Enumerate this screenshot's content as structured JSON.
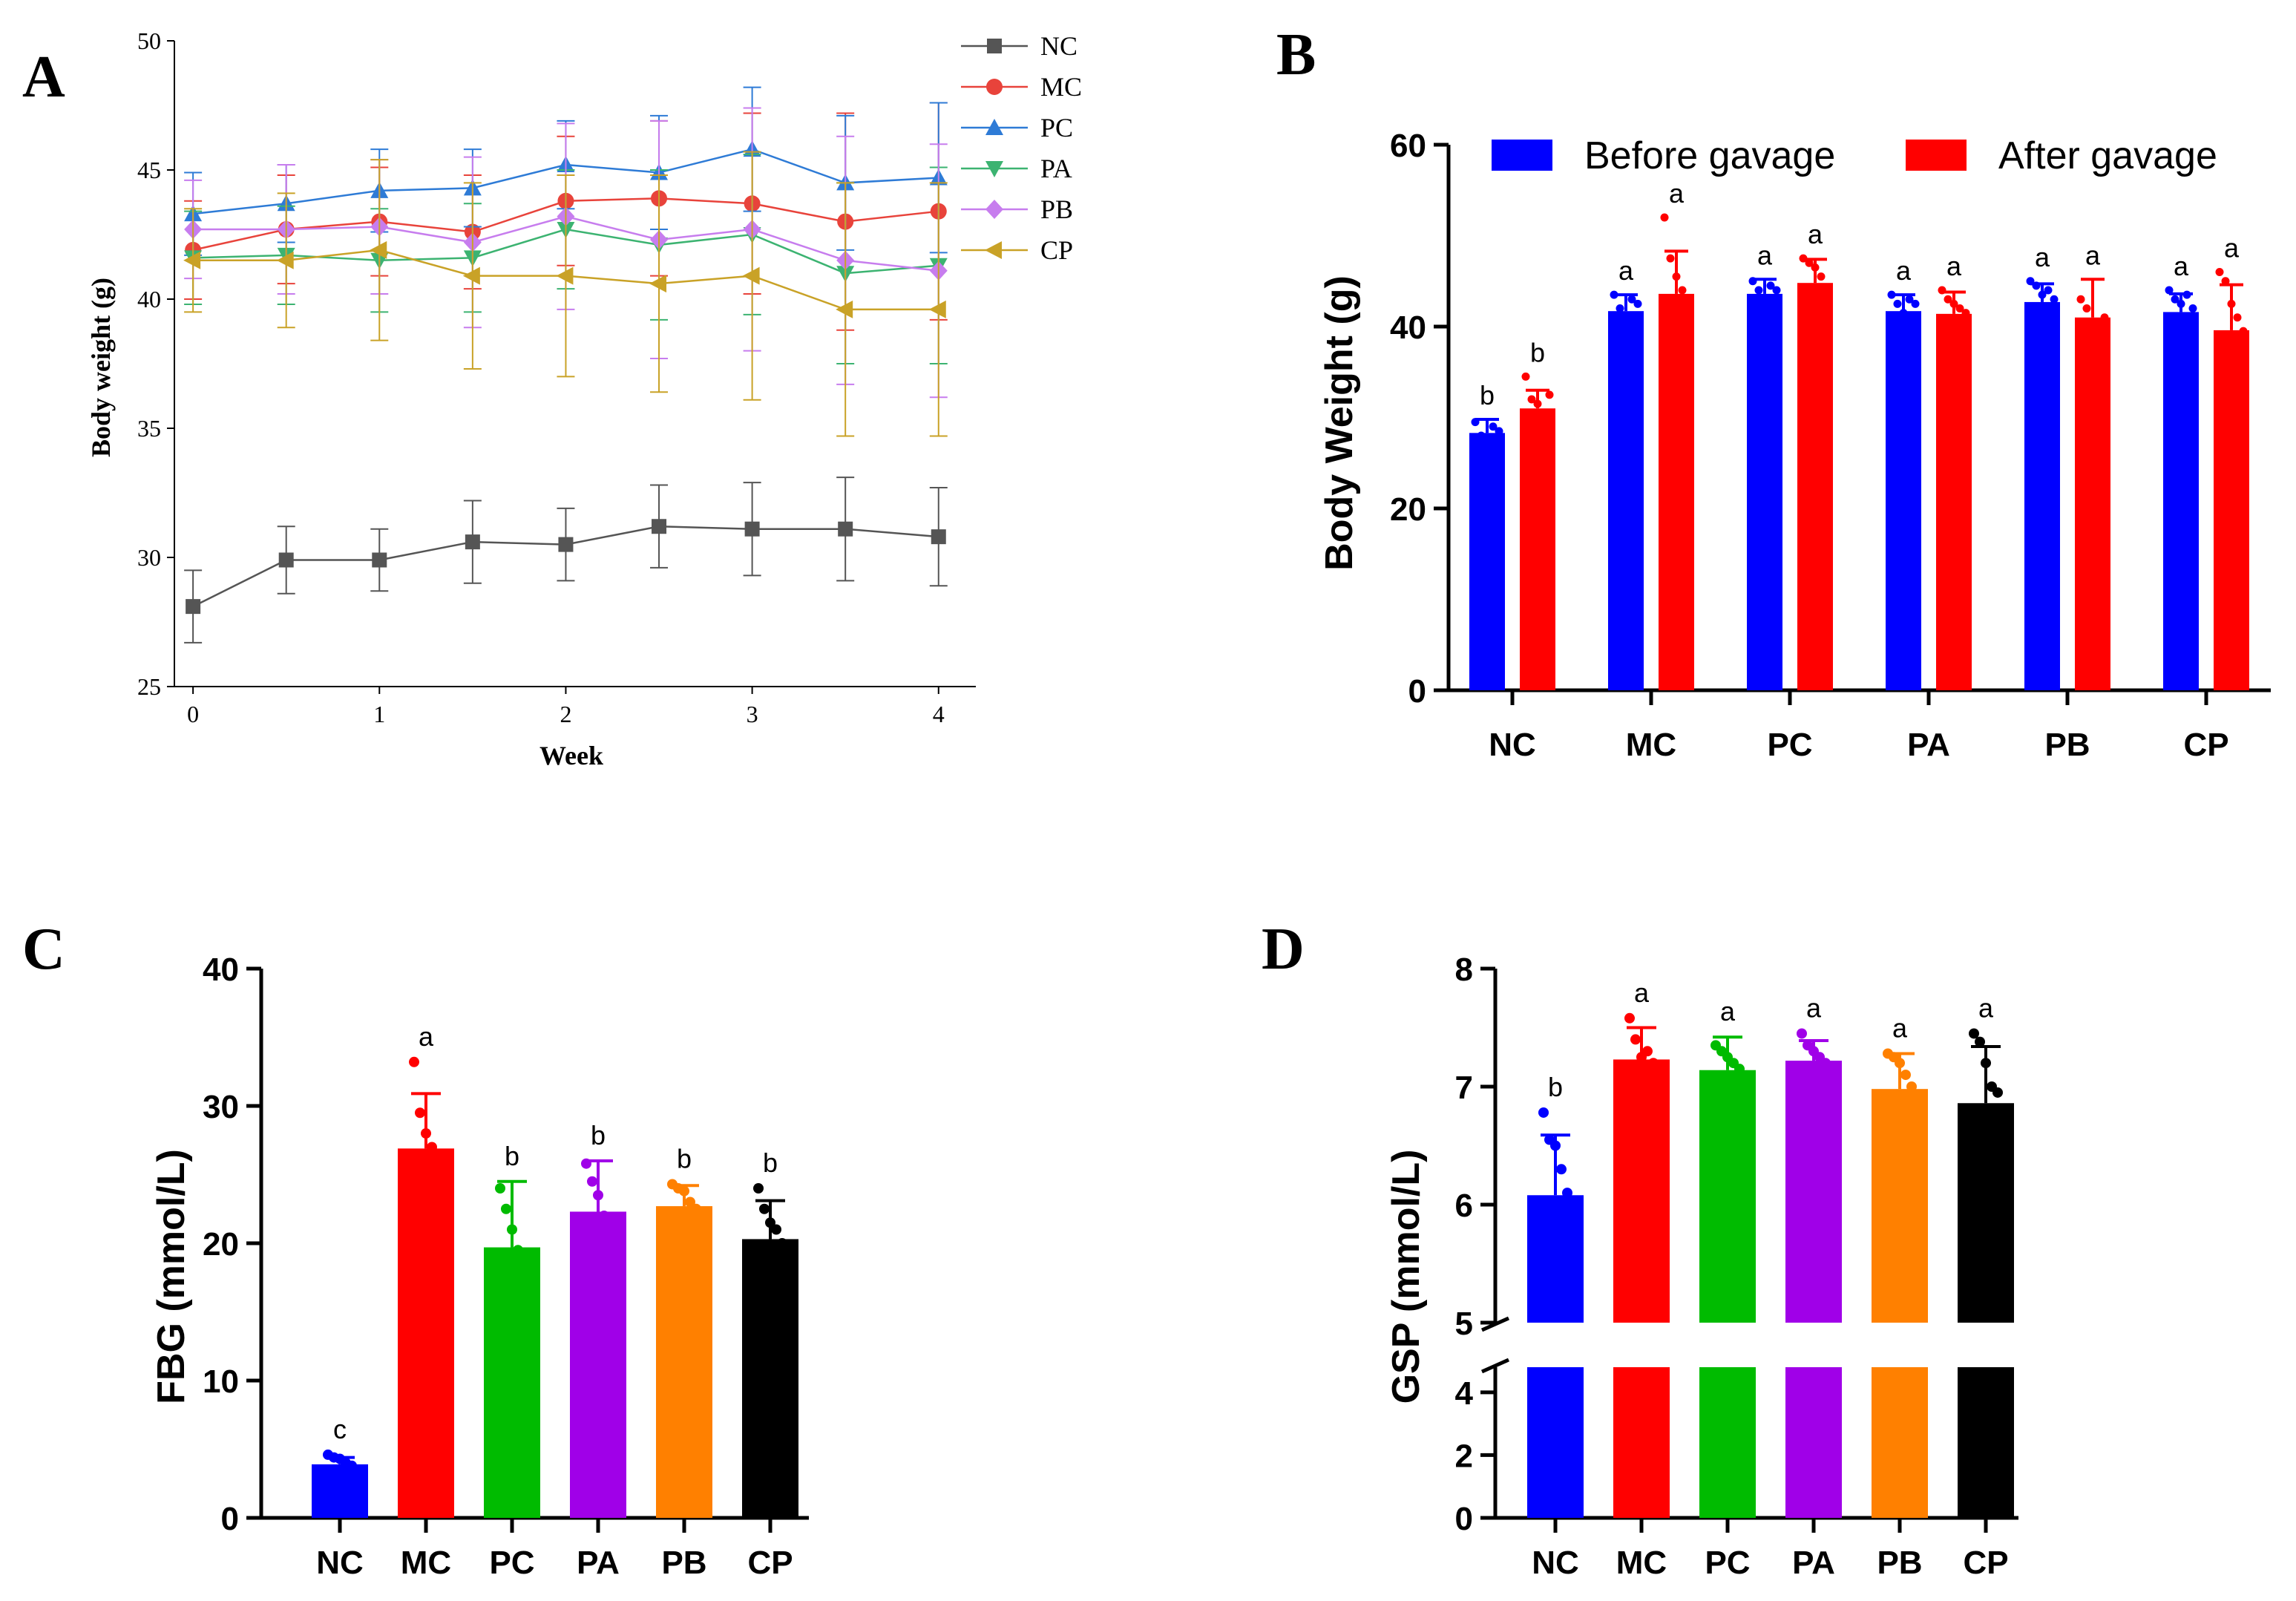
{
  "colors": {
    "NC": "#0000ff",
    "MC": "#ff0000",
    "PC": "#00bb00",
    "PA": "#a000e8",
    "PB": "#ff8000",
    "CP": "#000000",
    "lineNC": "#555555",
    "lineMC": "#e8433b",
    "linePC": "#2e7bd6",
    "linePA": "#3cb371",
    "linePB": "#c77dee",
    "lineCP": "#c9a227"
  },
  "chart_data": [
    {
      "panel": "A",
      "type": "line",
      "xlabel": "Week",
      "ylabel": "Body weight (g)",
      "ylim": [
        25,
        50
      ],
      "xlim": [
        -0.1,
        4.2
      ],
      "yticks": [
        "25",
        "30",
        "35",
        "40",
        "45",
        "50"
      ],
      "xticks": [
        "0",
        "1",
        "2",
        "3",
        "4"
      ],
      "x": [
        0,
        0.5,
        1,
        1.5,
        2,
        2.5,
        3,
        3.5,
        4
      ],
      "legend_position": "top-right",
      "series": [
        {
          "name": "NC",
          "marker": "square",
          "values": [
            28.1,
            29.9,
            29.9,
            30.6,
            30.5,
            31.2,
            31.1,
            31.1,
            30.8
          ],
          "err": [
            1.4,
            1.3,
            1.2,
            1.6,
            1.4,
            1.6,
            1.8,
            2.0,
            1.9
          ]
        },
        {
          "name": "MC",
          "marker": "circle",
          "values": [
            41.9,
            42.7,
            43.0,
            42.6,
            43.8,
            43.9,
            43.7,
            43.0,
            43.4
          ],
          "err": [
            1.9,
            2.1,
            2.1,
            2.2,
            2.5,
            3.0,
            3.5,
            4.2,
            4.2
          ]
        },
        {
          "name": "PC",
          "marker": "triangle-up",
          "values": [
            43.3,
            43.7,
            44.2,
            44.3,
            45.2,
            44.9,
            45.8,
            44.5,
            44.7
          ],
          "err": [
            1.6,
            1.5,
            1.6,
            1.5,
            1.7,
            2.2,
            2.4,
            2.6,
            2.9
          ]
        },
        {
          "name": "PA",
          "marker": "triangle-down",
          "values": [
            41.6,
            41.7,
            41.5,
            41.6,
            42.7,
            42.1,
            42.5,
            41.0,
            41.3
          ],
          "err": [
            1.8,
            1.9,
            2.0,
            2.1,
            2.3,
            2.9,
            3.1,
            3.5,
            3.8
          ]
        },
        {
          "name": "PB",
          "marker": "diamond",
          "values": [
            42.7,
            42.7,
            42.8,
            42.2,
            43.2,
            42.3,
            42.7,
            41.5,
            41.1
          ],
          "err": [
            1.9,
            2.5,
            2.6,
            3.3,
            3.6,
            4.6,
            4.7,
            4.8,
            4.9
          ]
        },
        {
          "name": "CP",
          "marker": "triangle-left",
          "values": [
            41.5,
            41.5,
            41.9,
            40.9,
            40.9,
            40.6,
            40.9,
            39.6,
            39.6
          ],
          "err": [
            2.0,
            2.6,
            3.5,
            3.6,
            3.9,
            4.2,
            4.8,
            4.9,
            4.9
          ]
        }
      ]
    },
    {
      "panel": "B",
      "type": "bar",
      "ylabel": "Body Weight (g)",
      "ylim": [
        0,
        60
      ],
      "yticks": [
        "0",
        "20",
        "40",
        "60"
      ],
      "categories": [
        "NC",
        "MC",
        "PC",
        "PA",
        "PB",
        "CP"
      ],
      "legend_position": "top",
      "series": [
        {
          "name": "Before gavage",
          "color": "#0000ff",
          "values": [
            28.3,
            41.7,
            43.6,
            41.7,
            42.7,
            41.6
          ],
          "err": [
            1.5,
            1.8,
            1.6,
            1.8,
            2.0,
            2.0
          ],
          "points": [
            [
              29.5,
              28.0,
              27.6,
              29.0,
              28.5
            ],
            [
              43.5,
              42.0,
              41.0,
              43.0,
              42.5
            ],
            [
              45.0,
              44.0,
              43.0,
              44.5,
              44.0
            ],
            [
              43.5,
              42.5,
              41.5,
              43.0,
              42.5
            ],
            [
              45.0,
              44.5,
              43.5,
              44.0,
              43.0
            ],
            [
              44.0,
              43.0,
              42.5,
              43.5,
              42.0
            ]
          ],
          "sig": [
            "b",
            "a",
            "a",
            "a",
            "a",
            "a"
          ]
        },
        {
          "name": "After gavage",
          "color": "#ff0000",
          "values": [
            31.0,
            43.6,
            44.8,
            41.4,
            41.0,
            39.6
          ],
          "err": [
            2.0,
            4.7,
            2.6,
            2.4,
            4.2,
            5.0
          ],
          "points": [
            [
              34.5,
              32.0,
              31.5,
              30.5,
              32.5
            ],
            [
              52.0,
              47.5,
              45.5,
              44.0,
              43.0
            ],
            [
              47.5,
              47.0,
              46.5,
              45.5,
              44.0
            ],
            [
              44.0,
              43.0,
              42.5,
              42.0,
              41.5
            ],
            [
              43.0,
              42.0,
              40.5,
              39.5,
              41.0
            ],
            [
              46.0,
              45.0,
              42.5,
              41.0,
              39.5
            ]
          ],
          "sig": [
            "b",
            "a",
            "a",
            "a",
            "a",
            "a"
          ]
        }
      ]
    },
    {
      "panel": "C",
      "type": "bar",
      "ylabel": "FBG (mmol/L)",
      "ylim": [
        0,
        40
      ],
      "yticks": [
        "0",
        "10",
        "20",
        "30",
        "40"
      ],
      "categories": [
        "NC",
        "MC",
        "PC",
        "PA",
        "PB",
        "CP"
      ],
      "values": [
        3.9,
        26.9,
        19.7,
        22.3,
        22.7,
        20.3
      ],
      "err": [
        0.5,
        4.0,
        4.8,
        3.7,
        1.5,
        2.8
      ],
      "points": [
        [
          4.6,
          4.4,
          4.3,
          4.0,
          3.8
        ],
        [
          33.2,
          29.5,
          28.0,
          27.0,
          25.5
        ],
        [
          24.0,
          22.5,
          21.0,
          19.5,
          18.5
        ],
        [
          25.8,
          24.5,
          23.5,
          22.0,
          21.0
        ],
        [
          24.3,
          24.0,
          23.8,
          23.0,
          22.5
        ],
        [
          24.0,
          22.5,
          21.5,
          21.0,
          20.0
        ]
      ],
      "sig": [
        "c",
        "a",
        "b",
        "b",
        "b",
        "b"
      ]
    },
    {
      "panel": "D",
      "type": "bar",
      "ylabel": "GSP (mmol/L)",
      "axis_break": true,
      "ylim_lower": [
        0,
        4.8
      ],
      "ylim_upper": [
        5,
        8
      ],
      "yticks_lower": [
        "0",
        "2",
        "4"
      ],
      "yticks_upper": [
        "5",
        "6",
        "7",
        "8"
      ],
      "categories": [
        "NC",
        "MC",
        "PC",
        "PA",
        "PB",
        "CP"
      ],
      "values": [
        6.08,
        7.23,
        7.14,
        7.22,
        6.98,
        6.86
      ],
      "err": [
        0.51,
        0.27,
        0.28,
        0.17,
        0.3,
        0.48
      ],
      "points": [
        [
          6.78,
          6.55,
          6.5,
          6.3,
          6.1
        ],
        [
          7.58,
          7.4,
          7.25,
          7.3,
          7.2
        ],
        [
          7.35,
          7.3,
          7.25,
          7.2,
          7.15
        ],
        [
          7.45,
          7.35,
          7.3,
          7.25,
          7.2
        ],
        [
          7.28,
          7.25,
          7.2,
          7.1,
          7.0
        ],
        [
          7.45,
          7.38,
          7.2,
          7.0,
          6.95
        ]
      ],
      "sig": [
        "b",
        "a",
        "a",
        "a",
        "a",
        "a"
      ]
    }
  ]
}
